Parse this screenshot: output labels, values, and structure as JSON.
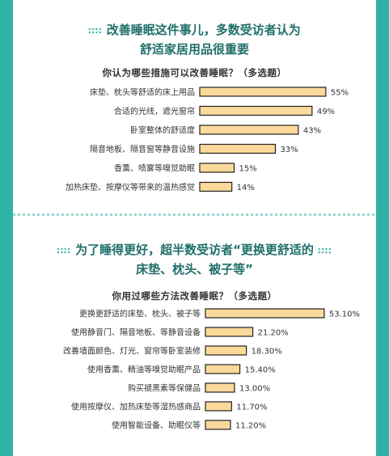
{
  "section1": {
    "headline_line1": "改善睡眠这件事儿，多数受访者认为",
    "headline_line2": "舒适家居用品很重要"
  },
  "section2": {
    "headline_line1": "为了睡得更好，超半数受访者“更换更舒适的",
    "headline_line2": "床垫、枕头、被子等”"
  },
  "colors": {
    "bar_fill": "#fbd99a",
    "bar_stroke": "#222222",
    "accent": "#2fb3a6",
    "headline": "#1f6f6a"
  },
  "chart_data": [
    {
      "type": "bar",
      "orientation": "horizontal",
      "title": "你认为哪些措施可以改善睡眠？（多选题）",
      "categories": [
        "床垫、枕头等舒适的床上用品",
        "合适的光线，遮光窗帘",
        "卧室整体的舒适度",
        "隔音地板、隔音窗等静音设施",
        "香薰、喷雾等嗅觉助眠",
        "加热床垫、按摩仪等带来的温热感觉"
      ],
      "values": [
        55,
        49,
        43,
        33,
        15,
        14
      ],
      "labels": [
        "55%",
        "49%",
        "43%",
        "33%",
        "15%",
        "14%"
      ],
      "unit": "%",
      "xlim": [
        0,
        60
      ]
    },
    {
      "type": "bar",
      "orientation": "horizontal",
      "title": "你用过哪些方法改善睡眠？（多选题）",
      "categories": [
        "更换更舒适的床垫、枕头、被子等",
        "使用静音门、隔音地板、等静音设备",
        "改善墙面颜色、灯光、窗帘等卧室装修",
        "使用香薰、精油等嗅觉助眠产品",
        "购买褪黑素等保健品",
        "使用按摩仪、加热床垫等湿热感商品",
        "使用智能设备、助眠仪等"
      ],
      "values": [
        53.1,
        21.2,
        18.3,
        15.4,
        13.0,
        11.7,
        11.2
      ],
      "labels": [
        "53.10%",
        "21.20%",
        "18.30%",
        "15.40%",
        "13.00%",
        "11.70%",
        "11.20%"
      ],
      "unit": "%",
      "xlim": [
        0,
        60
      ]
    }
  ]
}
